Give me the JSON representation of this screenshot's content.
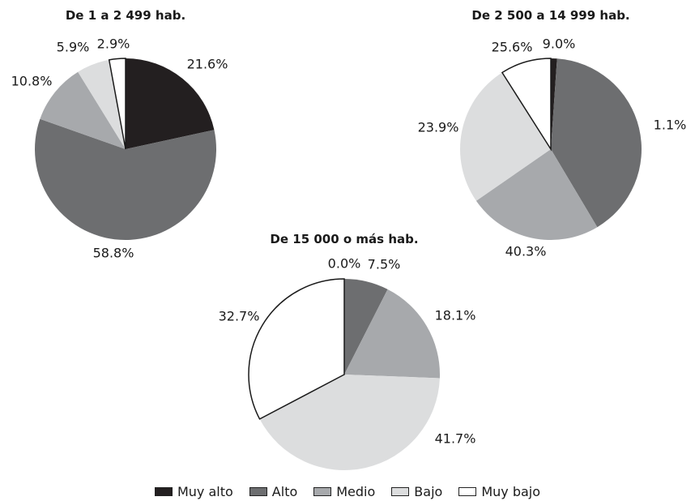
{
  "chart_data": [
    {
      "type": "pie",
      "title": "De 1 a 2 499 hab.",
      "categories": [
        "Muy alto",
        "Alto",
        "Medio",
        "Bajo",
        "Muy bajo"
      ],
      "values": [
        21.6,
        58.8,
        10.8,
        5.9,
        2.9
      ],
      "labels": [
        "21.6%",
        "58.8%",
        "10.8%",
        "5.9%",
        "2.9%"
      ]
    },
    {
      "type": "pie",
      "title": "De 2 500 a 14 999 hab.",
      "categories": [
        "Muy alto",
        "Alto",
        "Medio",
        "Bajo",
        "Muy bajo"
      ],
      "values": [
        1.1,
        40.3,
        23.9,
        25.6,
        9.0
      ],
      "labels": [
        "1.1%",
        "40.3%",
        "23.9%",
        "25.6%",
        "9.0%"
      ]
    },
    {
      "type": "pie",
      "title": "De 15 000 o más hab.",
      "categories": [
        "Muy alto",
        "Alto",
        "Medio",
        "Bajo",
        "Muy bajo"
      ],
      "values": [
        0.0,
        7.5,
        18.1,
        41.7,
        32.7
      ],
      "labels": [
        "0.0%",
        "7.5%",
        "18.1%",
        "41.7%",
        "32.7%"
      ]
    }
  ],
  "legend": {
    "position": "bottom",
    "items": [
      {
        "label": "Muy alto",
        "color": "#231f20"
      },
      {
        "label": "Alto",
        "color": "#6d6e70"
      },
      {
        "label": "Medio",
        "color": "#a7a9ac"
      },
      {
        "label": "Bajo",
        "color": "#dcddde"
      },
      {
        "label": "Muy bajo",
        "color": "#ffffff"
      }
    ]
  }
}
